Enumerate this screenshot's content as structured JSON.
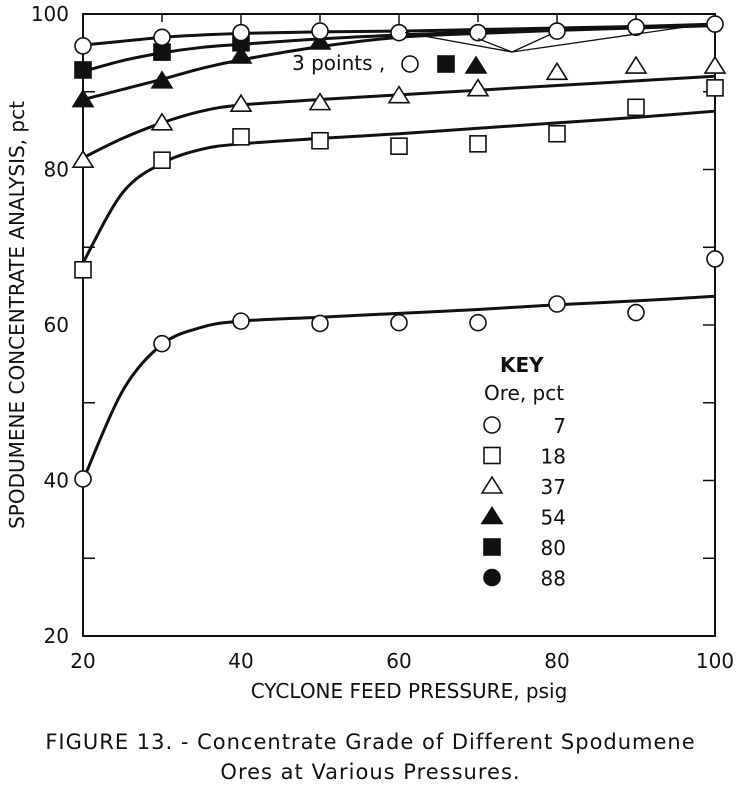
{
  "chart_data": {
    "type": "scatter",
    "xlabel": "CYCLONE FEED PRESSURE, psig",
    "ylabel": "SPODUMENE CONCENTRATE ANALYSIS, pct",
    "xlim": [
      20,
      100
    ],
    "ylim": [
      20,
      100
    ],
    "x_ticks": [
      20,
      40,
      60,
      80,
      100
    ],
    "y_ticks": [
      20,
      40,
      60,
      80,
      100
    ],
    "x_minor_ticks": [
      30,
      50,
      70,
      90
    ],
    "y_minor_ticks": [
      30,
      50,
      70,
      90
    ],
    "grid": false,
    "legend_title": "KEY",
    "legend_subtitle": "Ore, pct",
    "legend_position": "right-middle",
    "annotation": "3 points ,",
    "fit_x": [
      20,
      25,
      30,
      35,
      40,
      50,
      60,
      70,
      80,
      90,
      100
    ],
    "series": [
      {
        "name": "7",
        "marker": "open-circle",
        "x": [
          20,
          30,
          40,
          50,
          60,
          70,
          80,
          90,
          100
        ],
        "y": [
          40.2,
          57.6,
          60.5,
          60.2,
          60.3,
          60.3,
          62.7,
          61.6,
          68.5
        ],
        "fit": [
          40,
          51.5,
          57.5,
          59.7,
          60.5,
          61,
          61.5,
          62,
          62.6,
          63.1,
          63.7
        ]
      },
      {
        "name": "18",
        "marker": "open-square",
        "x": [
          20,
          30,
          40,
          50,
          60,
          70,
          80,
          90,
          100
        ],
        "y": [
          67.1,
          81.2,
          84.2,
          83.7,
          83.0,
          83.3,
          84.6,
          88.0,
          90.5
        ],
        "fit": [
          68,
          77,
          80.8,
          82.6,
          83.3,
          84,
          84.6,
          85.3,
          86,
          86.7,
          87.5
        ]
      },
      {
        "name": "37",
        "marker": "open-triangle",
        "x": [
          20,
          30,
          40,
          50,
          60,
          70,
          80,
          90,
          100
        ],
        "y": [
          81.2,
          86.0,
          88.4,
          88.6,
          89.5,
          90.4,
          92.5,
          93.3,
          93.3
        ],
        "fit": [
          81.5,
          84,
          86,
          87.5,
          88.3,
          89,
          89.6,
          90.2,
          90.8,
          91.4,
          92
        ]
      },
      {
        "name": "54",
        "marker": "filled-triangle",
        "x": [
          20,
          30,
          40,
          50
        ],
        "y": [
          89.0,
          91.4,
          94.6,
          96.4
        ],
        "fit": [
          89,
          90.3,
          91.6,
          93,
          94.1,
          95.8,
          97,
          97.5,
          97.9,
          98.2,
          98.5
        ]
      },
      {
        "name": "80",
        "marker": "filled-square",
        "x": [
          20,
          30,
          40
        ],
        "y": [
          92.8,
          95.1,
          96.3
        ],
        "fit": [
          92.6,
          94,
          95,
          95.7,
          96.1,
          96.8,
          97.3,
          97.7,
          98,
          98.3,
          98.6
        ]
      },
      {
        "name": "88",
        "marker": "filled-circle",
        "x": [
          20,
          30,
          40,
          50,
          60,
          70,
          80,
          90,
          100
        ],
        "y": [
          95.9,
          97.0,
          97.6,
          97.8,
          97.6,
          97.6,
          97.8,
          98.3,
          98.7
        ],
        "fit": [
          96,
          96.5,
          97,
          97.3,
          97.5,
          97.7,
          97.8,
          98,
          98.2,
          98.4,
          98.7
        ]
      }
    ]
  },
  "caption": {
    "line1": "FIGURE 13. - Concentrate Grade of Different Spodumene",
    "line2": "Ores at Various Pressures."
  }
}
